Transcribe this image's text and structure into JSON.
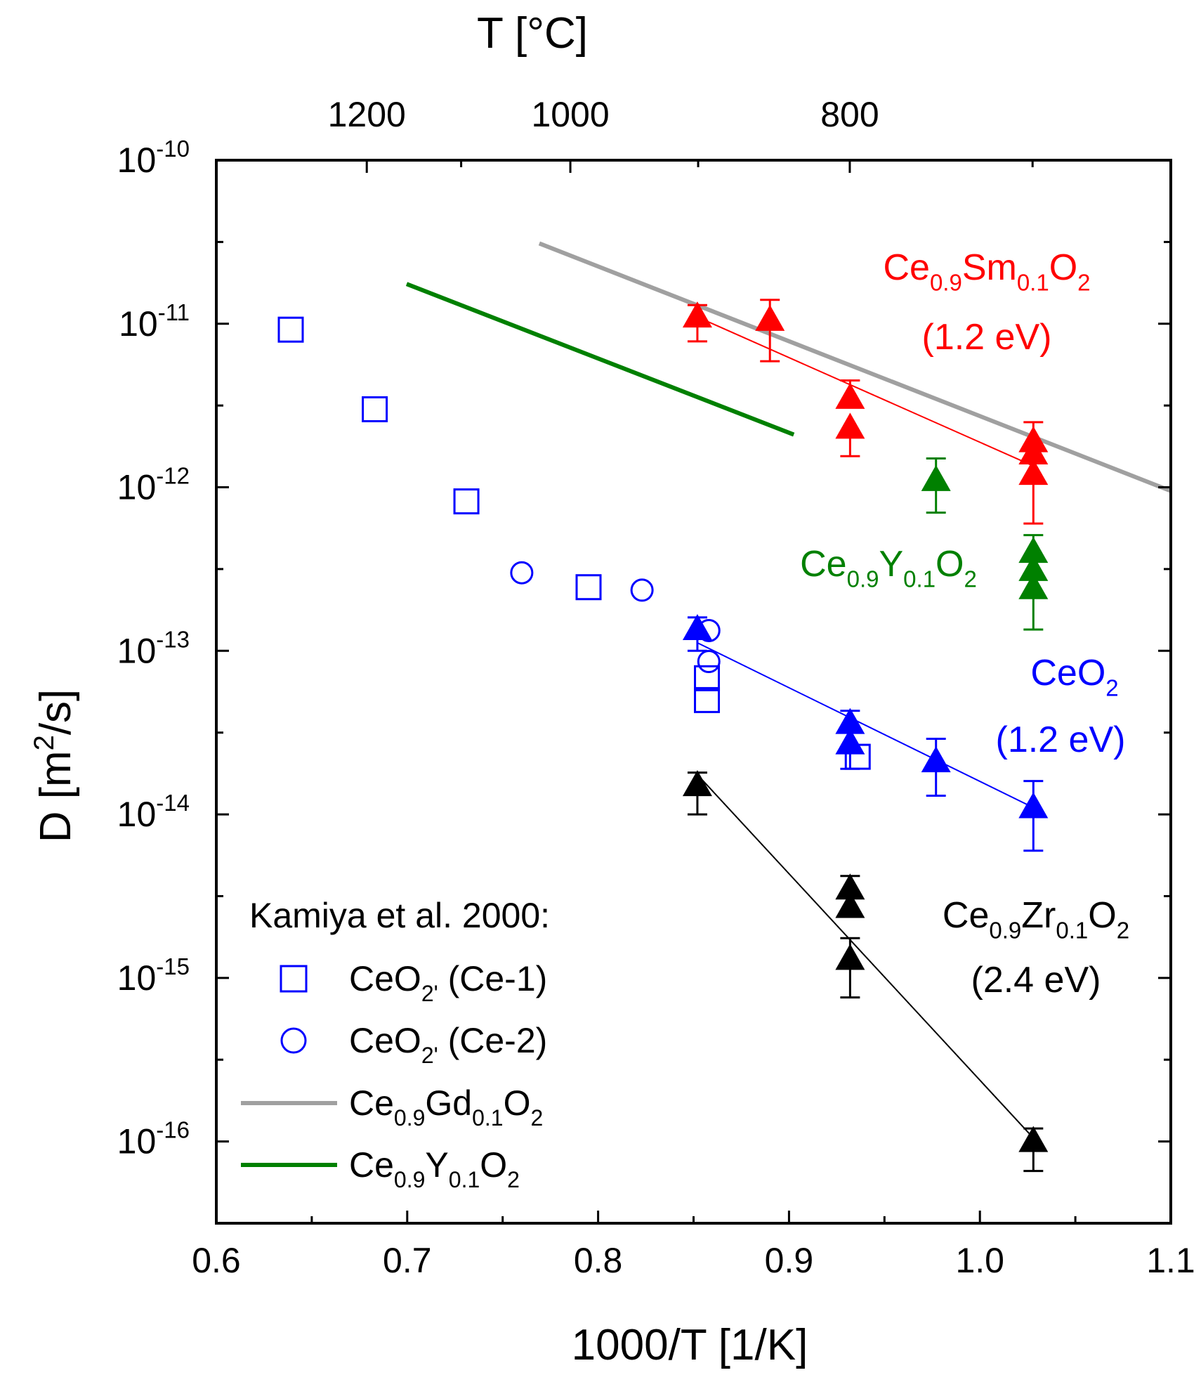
{
  "chart_data": {
    "type": "scatter",
    "xlabel": "1000/T [1/K]",
    "ylabel": {
      "pre": "D [m",
      "sup": "2",
      "post": "/s]"
    },
    "top_axis_label": "T [°C]",
    "x_range": [
      0.6,
      1.1
    ],
    "y_range_log10": [
      -16.5,
      -10
    ],
    "y_scale": "log",
    "grid": false,
    "x_ticks": [
      0.6,
      0.7,
      0.8,
      0.9,
      1.0,
      1.1
    ],
    "x_tick_labels": [
      "0.6",
      "0.7",
      "0.8",
      "0.9",
      "1.0",
      "1.1"
    ],
    "y_ticks_exp": [
      -10,
      -11,
      -12,
      -13,
      -14,
      -15,
      -16
    ],
    "y_tick_labels": [
      {
        "base": "10",
        "exp": "-10"
      },
      {
        "base": "10",
        "exp": "-11"
      },
      {
        "base": "10",
        "exp": "-12"
      },
      {
        "base": "10",
        "exp": "-13"
      },
      {
        "base": "10",
        "exp": "-14"
      },
      {
        "base": "10",
        "exp": "-15"
      },
      {
        "base": "10",
        "exp": "-16"
      }
    ],
    "top_ticks_celsius": [
      1200,
      1000,
      800
    ],
    "top_tick_labels": [
      "1200",
      "1000",
      "800"
    ],
    "colors": {
      "red": "#ff0000",
      "blue": "#0000ff",
      "green": "#008000",
      "black": "#000000",
      "gray": "#a0a0a0"
    },
    "triangle_series": [
      {
        "color": "red",
        "points": [
          {
            "x": 0.852,
            "y": 1.1e-11,
            "err_hi": 1.3e-11,
            "err_lo": 7.8e-12
          },
          {
            "x": 0.89,
            "y": 1.05e-11,
            "err_hi": 1.4e-11,
            "err_lo": 5.9e-12
          },
          {
            "x": 0.932,
            "y": 3.5e-12,
            "err_hi": 4.5e-12,
            "err_lo": null
          },
          {
            "x": 0.932,
            "y": 2.3e-12,
            "err_hi": null,
            "err_lo": 1.55e-12
          },
          {
            "x": 1.028,
            "y": 1.9e-12,
            "err_hi": 2.5e-12,
            "err_lo": null
          },
          {
            "x": 1.028,
            "y": 1.6e-12,
            "err_hi": null,
            "err_lo": null
          },
          {
            "x": 1.028,
            "y": 1.2e-12,
            "err_hi": null,
            "err_lo": 6e-13
          }
        ],
        "fit": {
          "x": [
            0.852,
            1.028
          ],
          "y": [
            1.1e-11,
            1.35e-12
          ]
        }
      },
      {
        "color": "green",
        "points": [
          {
            "x": 0.977,
            "y": 1.1e-12,
            "err_hi": 1.5e-12,
            "err_lo": 7e-13
          },
          {
            "x": 1.028,
            "y": 4e-13,
            "err_hi": 5.1e-13,
            "err_lo": null
          },
          {
            "x": 1.028,
            "y": 3.1e-13,
            "err_hi": null,
            "err_lo": null
          },
          {
            "x": 1.028,
            "y": 2.4e-13,
            "err_hi": null,
            "err_lo": 1.35e-13
          }
        ],
        "fit": null
      },
      {
        "color": "blue",
        "points": [
          {
            "x": 0.852,
            "y": 1.35e-13,
            "err_hi": 1.6e-13,
            "err_lo": 1e-13
          },
          {
            "x": 0.932,
            "y": 3.6e-14,
            "err_hi": 4.3e-14,
            "err_lo": null
          },
          {
            "x": 0.932,
            "y": 2.7e-14,
            "err_hi": null,
            "err_lo": 1.9e-14
          },
          {
            "x": 0.977,
            "y": 2.1e-14,
            "err_hi": 2.9e-14,
            "err_lo": 1.3e-14
          },
          {
            "x": 1.028,
            "y": 1.1e-14,
            "err_hi": 1.6e-14,
            "err_lo": 6e-15
          }
        ],
        "fit": {
          "x": [
            0.852,
            1.028
          ],
          "y": [
            1.12e-13,
            1.1e-14
          ]
        }
      },
      {
        "color": "black",
        "points": [
          {
            "x": 0.852,
            "y": 1.5e-14,
            "err_hi": 1.8e-14,
            "err_lo": 1e-14
          },
          {
            "x": 0.932,
            "y": 3.5e-15,
            "err_hi": 4.2e-15,
            "err_lo": null
          },
          {
            "x": 0.932,
            "y": 2.7e-15,
            "err_hi": null,
            "err_lo": null
          },
          {
            "x": 0.932,
            "y": 1.3e-15,
            "err_hi": 1.75e-15,
            "err_lo": 7.6e-16
          },
          {
            "x": 1.028,
            "y": 1e-16,
            "err_hi": 1.2e-16,
            "err_lo": 6.6e-17
          }
        ],
        "fit": {
          "x": [
            0.852,
            1.028
          ],
          "y": [
            1.75e-14,
            1.05e-16
          ]
        }
      }
    ],
    "kamiya_squares": {
      "color": "blue",
      "points": [
        {
          "x": 0.639,
          "y": 9.2e-12
        },
        {
          "x": 0.683,
          "y": 3e-12
        },
        {
          "x": 0.731,
          "y": 8.2e-13
        },
        {
          "x": 0.795,
          "y": 2.45e-13
        },
        {
          "x": 0.857,
          "y": 6.8e-14
        },
        {
          "x": 0.857,
          "y": 5e-14
        },
        {
          "x": 0.936,
          "y": 2.25e-14
        }
      ]
    },
    "kamiya_circles": {
      "color": "blue",
      "points": [
        {
          "x": 0.76,
          "y": 3e-13
        },
        {
          "x": 0.823,
          "y": 2.35e-13
        },
        {
          "x": 0.858,
          "y": 1.33e-13
        },
        {
          "x": 0.858,
          "y": 8.6e-14
        }
      ]
    },
    "lines": [
      {
        "color": "gray",
        "x": [
          0.7692,
          1.1
        ],
        "y": [
          3.1e-11,
          9.5e-13
        ]
      },
      {
        "color": "green",
        "x": [
          0.6997,
          0.9025
        ],
        "y": [
          1.75e-11,
          2.1e-12
        ]
      }
    ],
    "annotations": [
      {
        "color": "red",
        "parts": [
          [
            "Ce",
            ""
          ],
          [
            "0.9",
            "sub"
          ],
          [
            "Sm",
            ""
          ],
          [
            "0.1",
            "sub"
          ],
          [
            "O",
            ""
          ],
          [
            "2",
            "sub"
          ]
        ]
      },
      {
        "color": "red",
        "parts": [
          [
            "(1.2 eV)",
            ""
          ]
        ]
      },
      {
        "color": "green",
        "parts": [
          [
            "Ce",
            ""
          ],
          [
            "0.9",
            "sub"
          ],
          [
            "Y",
            ""
          ],
          [
            "0.1",
            "sub"
          ],
          [
            "O",
            ""
          ],
          [
            "2",
            "sub"
          ]
        ]
      },
      {
        "color": "blue",
        "parts": [
          [
            "CeO",
            ""
          ],
          [
            "2",
            "sub"
          ]
        ]
      },
      {
        "color": "blue",
        "parts": [
          [
            "(1.2 eV)",
            ""
          ]
        ]
      },
      {
        "color": "black",
        "parts": [
          [
            "Ce",
            ""
          ],
          [
            "0.9",
            "sub"
          ],
          [
            "Zr",
            ""
          ],
          [
            "0.1",
            "sub"
          ],
          [
            "O",
            ""
          ],
          [
            "2",
            "sub"
          ]
        ]
      },
      {
        "color": "black",
        "parts": [
          [
            "(2.4 eV)",
            ""
          ]
        ]
      }
    ],
    "legend": {
      "placement": "bottom-left",
      "title": "Kamiya et al. 2000:",
      "entries": [
        {
          "symbol": "square",
          "color": "blue",
          "parts": [
            [
              "CeO",
              ""
            ],
            [
              "2'",
              "sub"
            ],
            [
              " (Ce-1)",
              ""
            ]
          ]
        },
        {
          "symbol": "circle",
          "color": "blue",
          "parts": [
            [
              "CeO",
              ""
            ],
            [
              "2'",
              "sub"
            ],
            [
              " (Ce-2)",
              ""
            ]
          ]
        },
        {
          "symbol": "line",
          "color": "gray",
          "parts": [
            [
              "Ce",
              ""
            ],
            [
              "0.9",
              "sub"
            ],
            [
              "Gd",
              ""
            ],
            [
              "0.1",
              "sub"
            ],
            [
              "O",
              ""
            ],
            [
              "2",
              "sub"
            ]
          ]
        },
        {
          "symbol": "line",
          "color": "green",
          "parts": [
            [
              "Ce",
              ""
            ],
            [
              "0.9",
              "sub"
            ],
            [
              "Y",
              ""
            ],
            [
              "0.1",
              "sub"
            ],
            [
              "O",
              ""
            ],
            [
              "2",
              "sub"
            ]
          ]
        }
      ]
    }
  }
}
